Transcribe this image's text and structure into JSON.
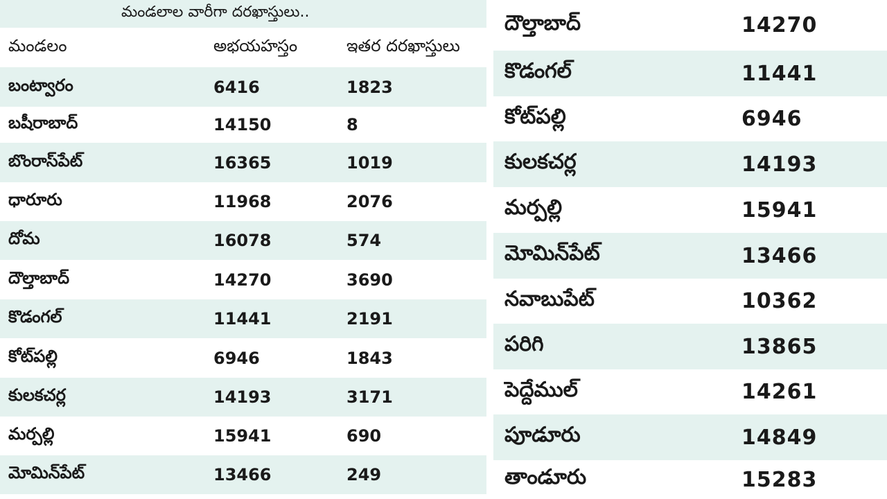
{
  "left_table": {
    "title": "మండలాల వారీగా దరఖాస్తులు..",
    "headers": [
      "మండలం",
      "అభయహస్తం",
      "ఇతర దరఖాస్తులు"
    ],
    "rows": [
      [
        "బంట్వారం",
        "6416",
        "1823"
      ],
      [
        "బషీరాబాద్",
        "14150",
        "8"
      ],
      [
        "బొంరాస్‌పేట్",
        "16365",
        "1019"
      ],
      [
        "ధారూరు",
        "11968",
        "2076"
      ],
      [
        "దోమ",
        "16078",
        "574"
      ],
      [
        "దౌల్తాబాద్",
        "14270",
        "3690"
      ],
      [
        "కొడంగల్",
        "11441",
        "2191"
      ],
      [
        "కోట్‌పల్లి",
        "6946",
        "1843"
      ],
      [
        "కులకచర్ల",
        "14193",
        "3171"
      ],
      [
        "మర్పల్లి",
        "15941",
        "690"
      ],
      [
        "మోమిన్‌పేట్",
        "13466",
        "249"
      ]
    ]
  },
  "right_table": {
    "rows": [
      [
        "దౌల్తాబాద్",
        "14270"
      ],
      [
        "కొడంగల్",
        "11441"
      ],
      [
        "కోట్‌పల్లి",
        "6946"
      ],
      [
        "కులకచర్ల",
        "14193"
      ],
      [
        "మర్పల్లి",
        "15941"
      ],
      [
        "మోమిన్‌పేట్",
        "13466"
      ],
      [
        "నవాబుపేట్",
        "10362"
      ],
      [
        "పరిగి",
        "13865"
      ],
      [
        "పెద్దేముల్",
        "14261"
      ],
      [
        "పూడూరు",
        "14849"
      ],
      [
        "తాండూరు",
        "15283"
      ]
    ]
  },
  "colors": {
    "row_shade": "#e4f2ef",
    "row_plain": "#ffffff",
    "text": "#1a1a1a"
  }
}
